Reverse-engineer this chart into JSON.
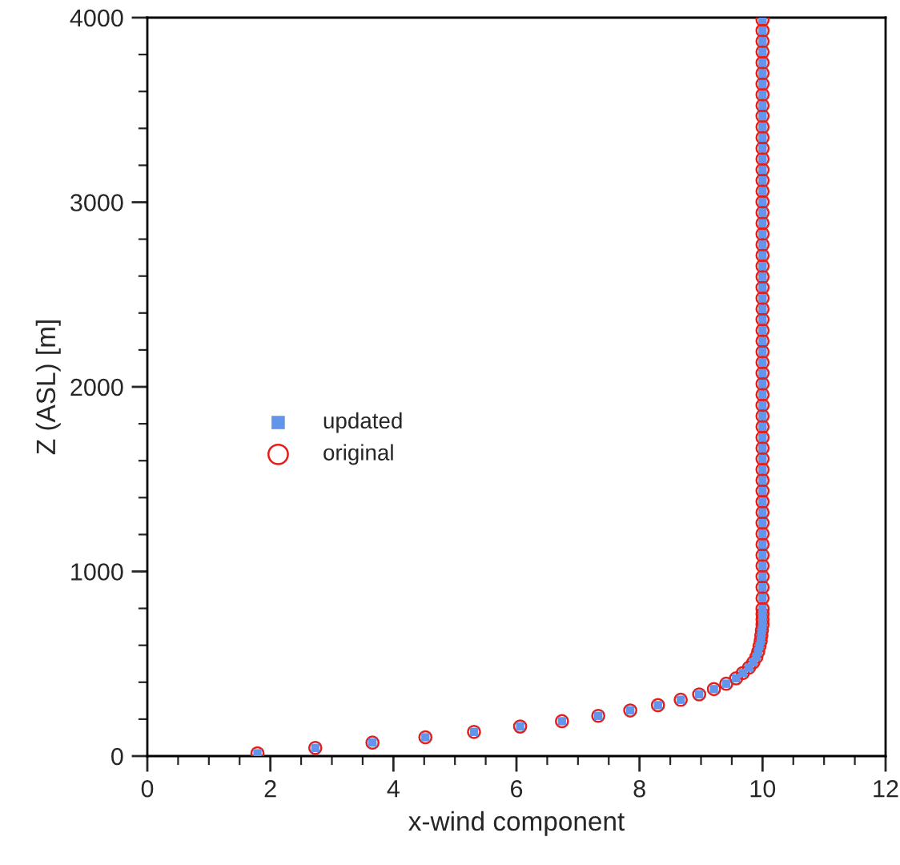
{
  "chart_data": {
    "type": "scatter",
    "xlabel": "x-wind component",
    "ylabel": "Z (ASL) [m]",
    "x": [
      1.79,
      2.73,
      3.66,
      4.52,
      5.31,
      6.06,
      6.74,
      7.33,
      7.85,
      8.3,
      8.67,
      8.97,
      9.21,
      9.41,
      9.57,
      9.68,
      9.78,
      9.85,
      9.9,
      9.93,
      9.95,
      9.97,
      9.98,
      9.99,
      10,
      10,
      10,
      10,
      10,
      10,
      10,
      10,
      10,
      10,
      10,
      10,
      10,
      10,
      10,
      10,
      10,
      10,
      10,
      10,
      10,
      10,
      10,
      10,
      10,
      10,
      10,
      10,
      10,
      10,
      10,
      10,
      10,
      10,
      10,
      10,
      10,
      10,
      10,
      10,
      10,
      10,
      10,
      10,
      10,
      10,
      10,
      10,
      10,
      10,
      10,
      10,
      10,
      10,
      10,
      10,
      10,
      10,
      10
    ],
    "series": [
      {
        "name": "updated",
        "color": "#6495ed",
        "marker": "square",
        "values": [
          15,
          44,
          73,
          102,
          131,
          160,
          189,
          218,
          247,
          276,
          305,
          334,
          363,
          392,
          421,
          450,
          479,
          508,
          537,
          566,
          595,
          624,
          653,
          682,
          711,
          740,
          769,
          798,
          856,
          914,
          972,
          1030,
          1088,
          1146,
          1204,
          1262,
          1320,
          1378,
          1436,
          1494,
          1552,
          1610,
          1668,
          1726,
          1784,
          1842,
          1900,
          1958,
          2016,
          2074,
          2132,
          2190,
          2248,
          2306,
          2364,
          2422,
          2480,
          2538,
          2596,
          2654,
          2712,
          2770,
          2828,
          2886,
          2944,
          3002,
          3060,
          3118,
          3176,
          3234,
          3292,
          3350,
          3408,
          3466,
          3524,
          3582,
          3640,
          3698,
          3756,
          3814,
          3872,
          3930,
          3988
        ]
      },
      {
        "name": "original",
        "color": "#e0201b",
        "marker": "circle",
        "values": [
          15,
          44,
          73,
          102,
          131,
          160,
          189,
          218,
          247,
          276,
          305,
          334,
          363,
          392,
          421,
          450,
          479,
          508,
          537,
          566,
          595,
          624,
          653,
          682,
          711,
          740,
          769,
          798,
          856,
          914,
          972,
          1030,
          1088,
          1146,
          1204,
          1262,
          1320,
          1378,
          1436,
          1494,
          1552,
          1610,
          1668,
          1726,
          1784,
          1842,
          1900,
          1958,
          2016,
          2074,
          2132,
          2190,
          2248,
          2306,
          2364,
          2422,
          2480,
          2538,
          2596,
          2654,
          2712,
          2770,
          2828,
          2886,
          2944,
          3002,
          3060,
          3118,
          3176,
          3234,
          3292,
          3350,
          3408,
          3466,
          3524,
          3582,
          3640,
          3698,
          3756,
          3814,
          3872,
          3930,
          3988
        ]
      }
    ],
    "xlim": [
      0,
      12
    ],
    "xticks": [
      0,
      2,
      4,
      6,
      8,
      10,
      12
    ],
    "ylim": [
      0,
      4000
    ],
    "yticks": [
      0,
      1000,
      2000,
      3000,
      4000
    ],
    "grid": false,
    "legend": "center left"
  }
}
